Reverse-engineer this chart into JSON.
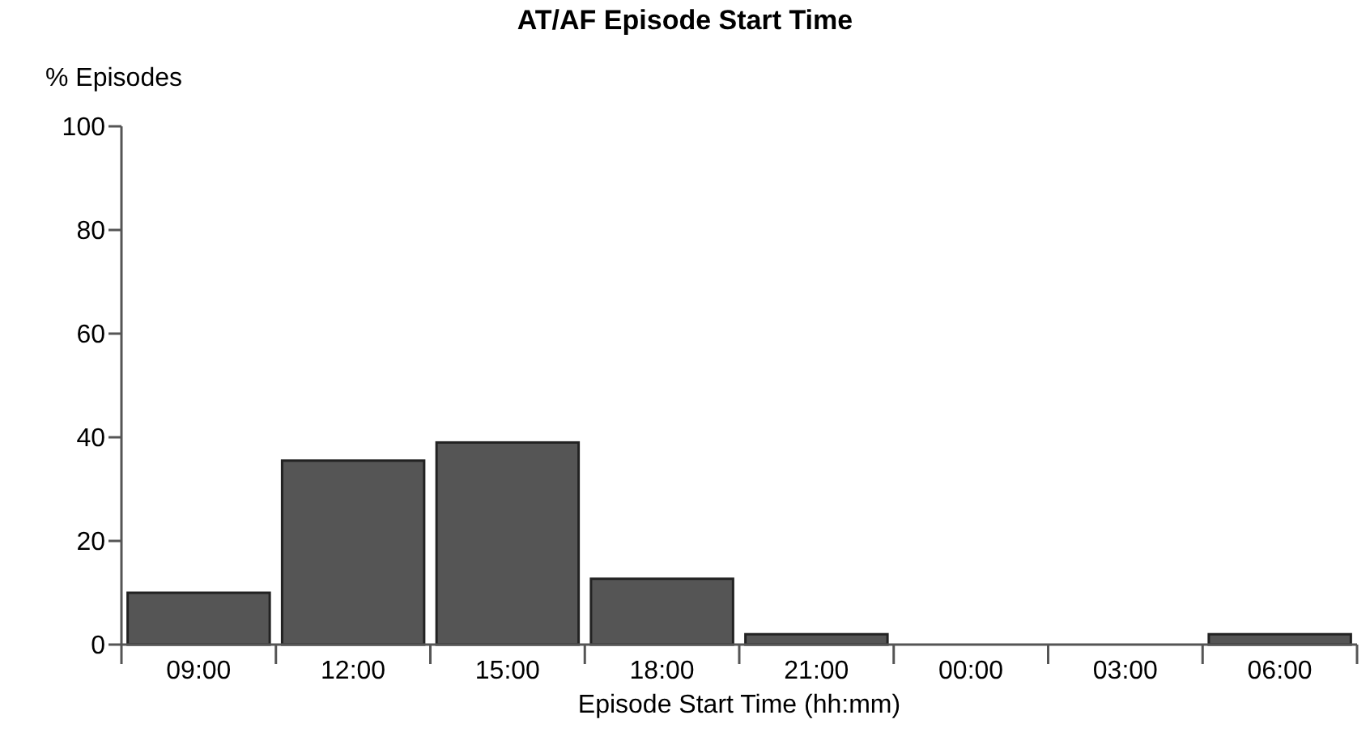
{
  "chart_data": {
    "type": "bar",
    "title": "AT/AF Episode Start Time",
    "xlabel": "Episode Start Time (hh:mm)",
    "ylabel": "% Episodes",
    "categories": [
      "09:00",
      "12:00",
      "15:00",
      "18:00",
      "21:00",
      "00:00",
      "03:00",
      "06:00"
    ],
    "values": [
      10,
      35.5,
      39,
      12.7,
      2,
      0,
      0,
      2
    ],
    "color": "#555555",
    "ylim": [
      0,
      100
    ],
    "yticks": [
      0,
      20,
      40,
      60,
      80,
      100
    ]
  }
}
